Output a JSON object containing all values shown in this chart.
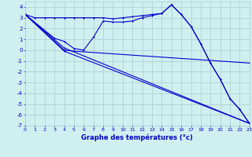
{
  "xlabel": "Graphe des températures (°c)",
  "bg_color": "#cff0f0",
  "grid_color": "#aacccc",
  "line_color": "#0000cc",
  "xlim": [
    0,
    23
  ],
  "ylim": [
    -7,
    4.5
  ],
  "xtick_vals": [
    0,
    1,
    2,
    3,
    4,
    5,
    6,
    7,
    8,
    9,
    10,
    11,
    12,
    13,
    14,
    15,
    16,
    17,
    18,
    19,
    20,
    21,
    22,
    23
  ],
  "ytick_vals": [
    -7,
    -6,
    -5,
    -4,
    -3,
    -2,
    -1,
    0,
    1,
    2,
    3,
    4
  ],
  "lines": [
    {
      "x": [
        0,
        1,
        2,
        3,
        4,
        5,
        6,
        7,
        8,
        9,
        10,
        11,
        12,
        13,
        14,
        15,
        16,
        17,
        18,
        19,
        20,
        21,
        22,
        23
      ],
      "y": [
        3.3,
        3.0,
        3.0,
        3.0,
        3.0,
        3.0,
        3.0,
        3.0,
        3.0,
        2.9,
        3.0,
        3.1,
        3.2,
        3.3,
        3.4,
        4.2,
        3.3,
        2.2,
        0.6,
        -1.2,
        -2.7,
        -4.5,
        -5.5,
        -6.8
      ]
    },
    {
      "x": [
        0,
        3,
        4,
        5,
        6,
        7,
        8,
        9,
        10,
        11,
        12,
        13,
        14,
        15,
        16,
        17,
        18,
        19,
        20,
        21,
        22,
        23
      ],
      "y": [
        3.3,
        1.1,
        0.8,
        0.15,
        0.0,
        1.2,
        2.7,
        2.6,
        2.6,
        2.7,
        3.0,
        3.2,
        3.4,
        4.2,
        3.3,
        2.2,
        0.6,
        -1.2,
        -2.7,
        -4.5,
        -5.5,
        -6.8
      ]
    },
    {
      "x": [
        0,
        4,
        5,
        23
      ],
      "y": [
        3.3,
        0.0,
        -0.1,
        -1.2
      ]
    },
    {
      "x": [
        0,
        4,
        23
      ],
      "y": [
        3.3,
        0.2,
        -6.8
      ]
    },
    {
      "x": [
        0,
        4,
        23
      ],
      "y": [
        3.3,
        -0.1,
        -6.8
      ]
    }
  ]
}
